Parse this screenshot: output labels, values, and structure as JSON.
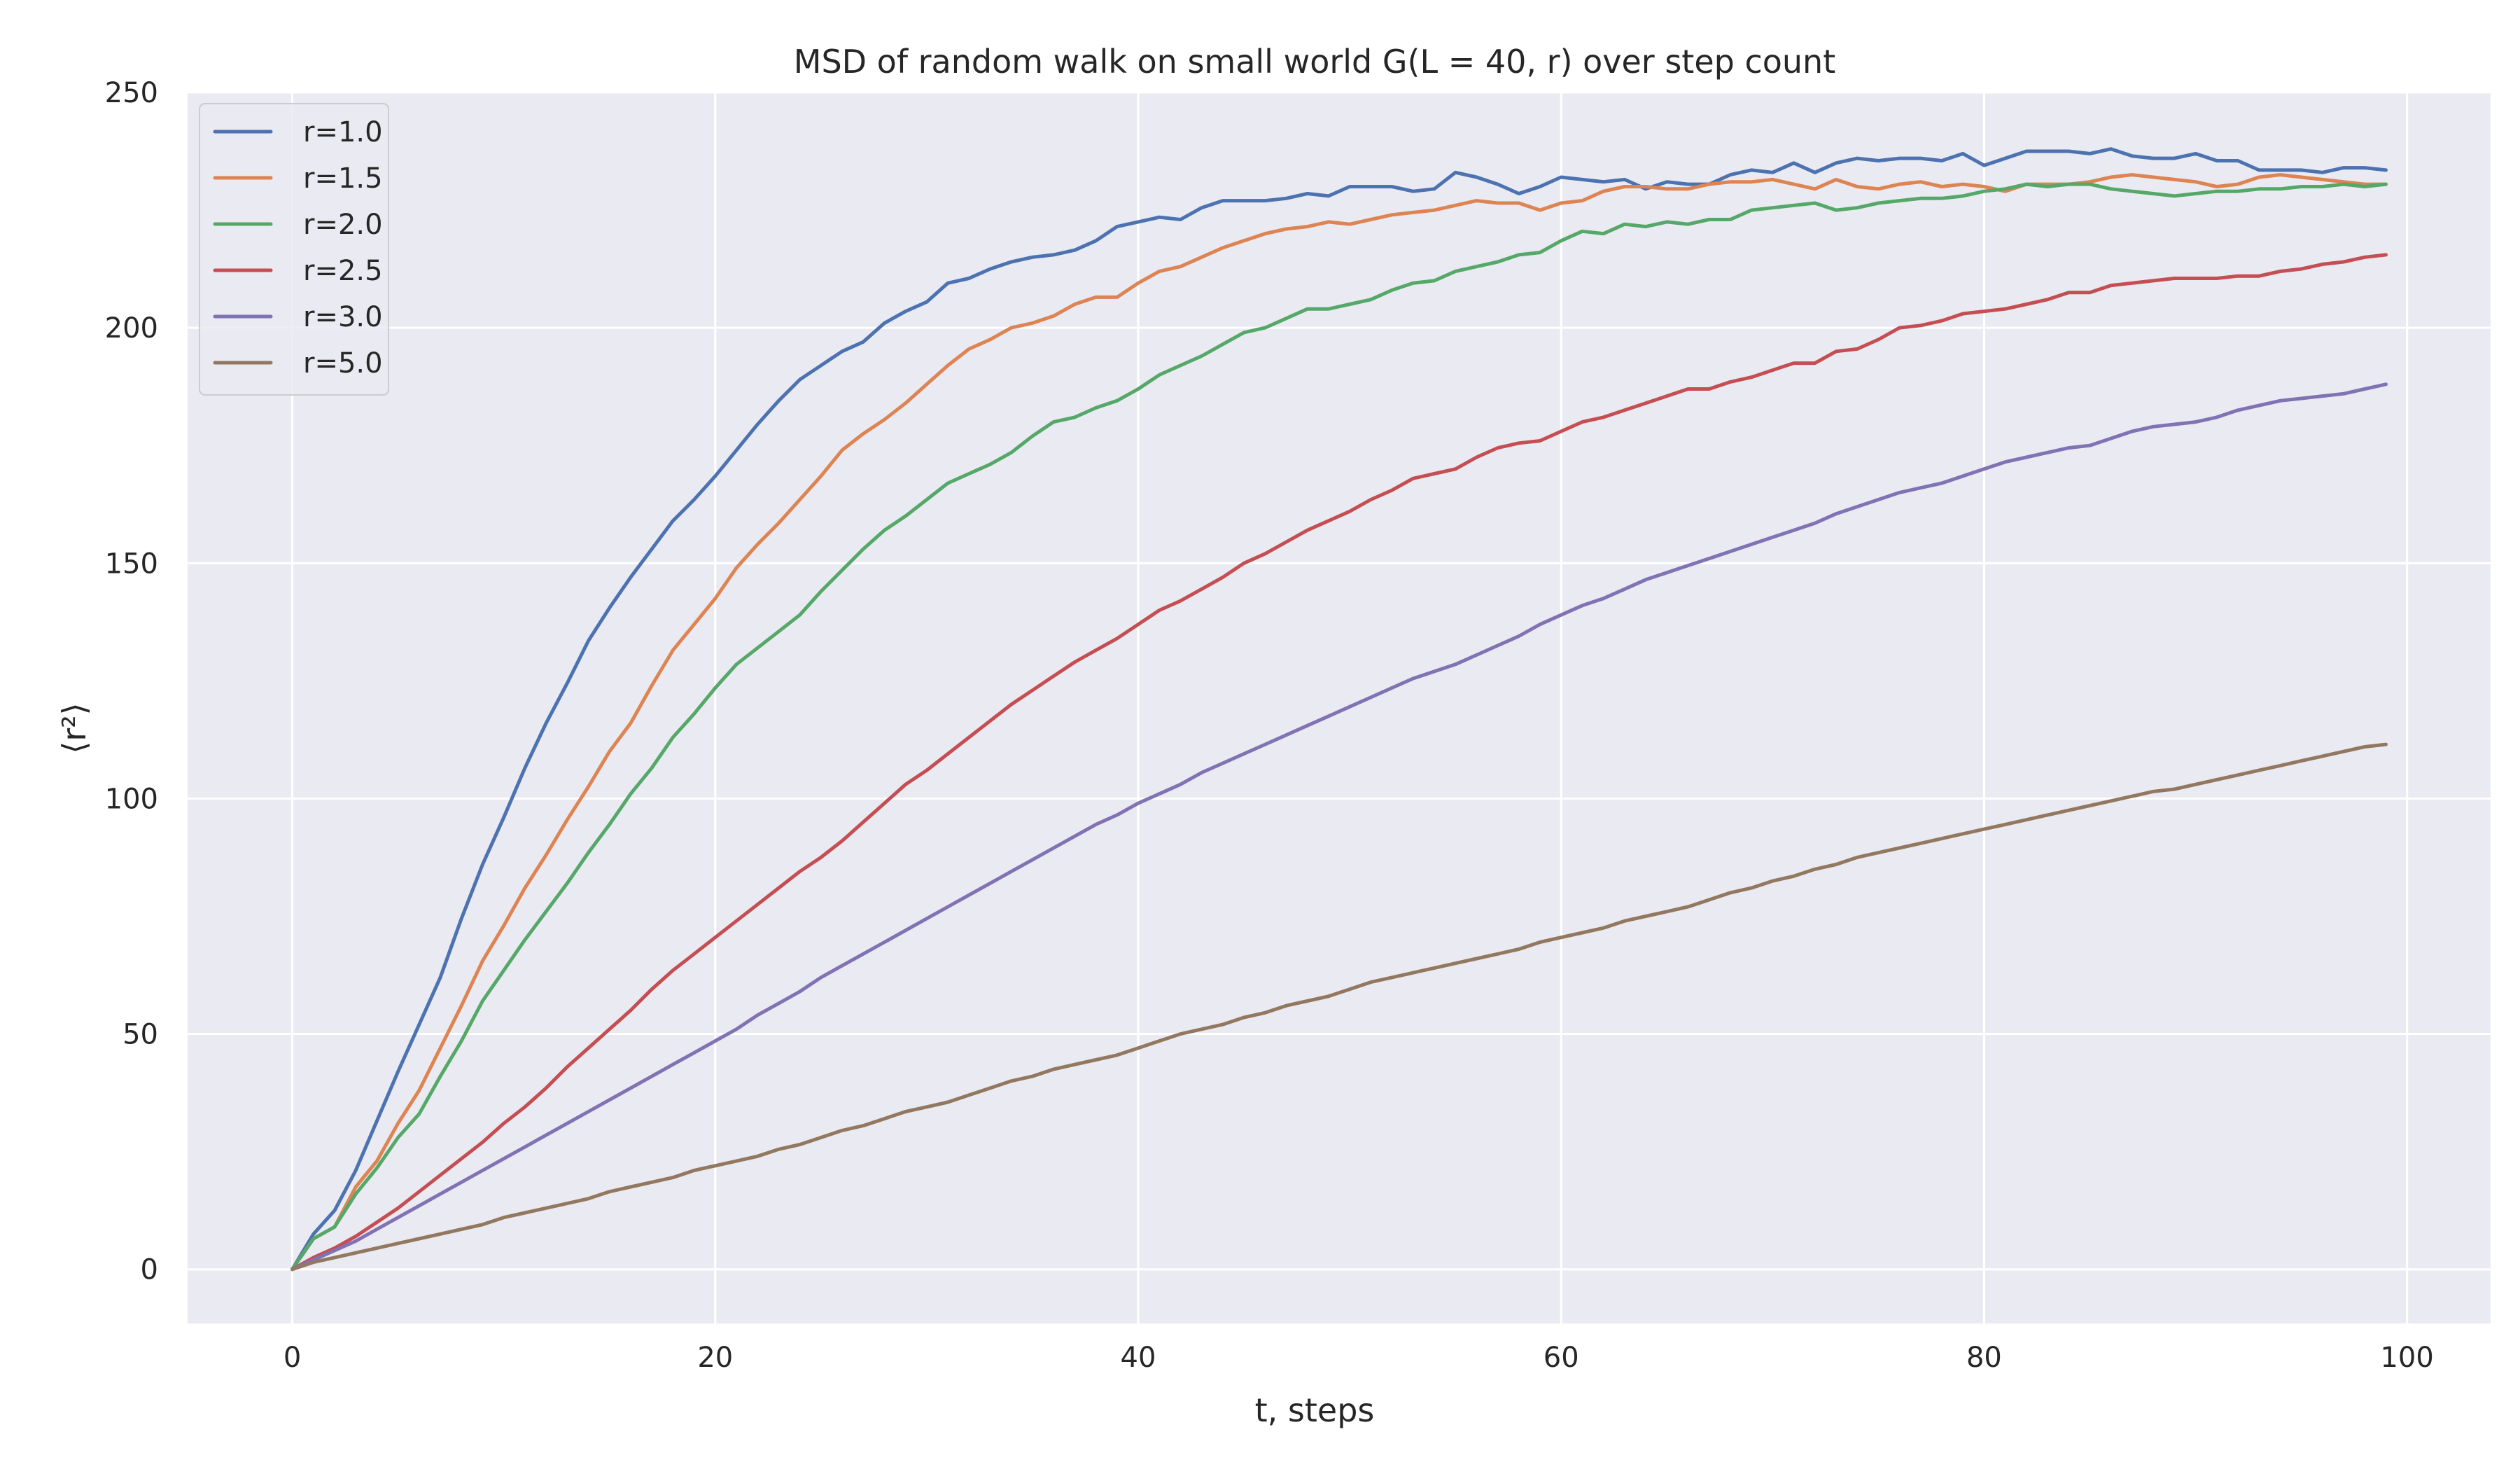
{
  "chart_data": {
    "type": "line",
    "title": "MSD of random walk on small world G(L = 40, r) over step count",
    "xlabel": "t, steps",
    "ylabel": "⟨r²⟩",
    "xlim": [
      -4.95,
      103.95
    ],
    "ylim": [
      -11.5,
      250
    ],
    "xticks": [
      0,
      20,
      40,
      60,
      80,
      100
    ],
    "yticks": [
      0,
      50,
      100,
      150,
      200,
      250
    ],
    "grid": true,
    "legend_position": "top-left",
    "background_color": "#eaeaf2",
    "grid_color": "#ffffff",
    "x": [
      0,
      1,
      2,
      3,
      4,
      5,
      6,
      7,
      8,
      9,
      10,
      11,
      12,
      13,
      14,
      15,
      16,
      17,
      18,
      19,
      20,
      21,
      22,
      23,
      24,
      25,
      26,
      27,
      28,
      29,
      30,
      31,
      32,
      33,
      34,
      35,
      36,
      37,
      38,
      39,
      40,
      41,
      42,
      43,
      44,
      45,
      46,
      47,
      48,
      49,
      50,
      51,
      52,
      53,
      54,
      55,
      56,
      57,
      58,
      59,
      60,
      61,
      62,
      63,
      64,
      65,
      66,
      67,
      68,
      69,
      70,
      71,
      72,
      73,
      74,
      75,
      76,
      77,
      78,
      79,
      80,
      81,
      82,
      83,
      84,
      85,
      86,
      87,
      88,
      89,
      90,
      91,
      92,
      93,
      94,
      95,
      96,
      97,
      98,
      99
    ],
    "series": [
      {
        "name": "r=1.0",
        "color": "#4c72b0",
        "values": [
          0,
          7.5,
          12.5,
          21,
          31.5,
          42,
          52,
          62,
          74.5,
          86,
          96,
          106.5,
          116,
          124.5,
          133.5,
          140.5,
          147,
          153,
          159,
          163.5,
          168.5,
          174,
          179.5,
          184.5,
          189,
          192,
          195,
          197,
          201,
          203.5,
          205.5,
          209.5,
          210.5,
          212.5,
          214,
          215,
          215.5,
          216.5,
          218.5,
          221.5,
          222.5,
          223.5,
          223,
          225.5,
          227,
          227,
          227,
          227.5,
          228.5,
          228,
          230,
          230,
          230,
          229,
          229.5,
          233,
          232,
          230.5,
          228.5,
          230,
          232,
          231.5,
          231,
          231.5,
          229.5,
          231,
          230.5,
          230.5,
          232.5,
          233.5,
          233,
          235,
          233,
          235,
          236,
          235.5,
          236,
          236,
          235.5,
          237,
          234.5,
          236,
          237.5,
          237.5,
          237.5,
          237,
          238,
          236.5,
          236,
          236,
          237,
          235.5,
          235.5,
          233.5,
          233.5,
          233.5,
          233,
          234,
          234,
          233.5
        ]
      },
      {
        "name": "r=1.5",
        "color": "#dd8452",
        "values": [
          0,
          6.5,
          9,
          17.5,
          23,
          31,
          38,
          47,
          56,
          65.5,
          73,
          81,
          88,
          95.5,
          102.5,
          110,
          116,
          124,
          131.5,
          137,
          142.5,
          149,
          154,
          158.5,
          163.5,
          168.5,
          174,
          177.5,
          180.5,
          184,
          188,
          192,
          195.5,
          197.5,
          200,
          201,
          202.5,
          205,
          206.5,
          206.5,
          209.5,
          212,
          213,
          215,
          217,
          218.5,
          220,
          221,
          221.5,
          222.5,
          222,
          223,
          224,
          224.5,
          225,
          226,
          227,
          226.5,
          226.5,
          225,
          226.5,
          227,
          229,
          230,
          230,
          229.5,
          229.5,
          230.5,
          231,
          231,
          231.5,
          230.5,
          229.5,
          231.5,
          230,
          229.5,
          230.5,
          231,
          230,
          230.5,
          230,
          229,
          230.5,
          230.5,
          230.5,
          231,
          232,
          232.5,
          232,
          231.5,
          231,
          230,
          230.5,
          232,
          232.5,
          232,
          231.5,
          231,
          230.5,
          230.5
        ]
      },
      {
        "name": "r=2.0",
        "color": "#55a868",
        "values": [
          0,
          6.5,
          9,
          16,
          21.5,
          28,
          33,
          41,
          48.5,
          57,
          63.5,
          70,
          76,
          82,
          88.5,
          94.5,
          101,
          106.5,
          113,
          118,
          123.5,
          128.5,
          132,
          135.5,
          139,
          144,
          148.5,
          153,
          157,
          160,
          163.5,
          167,
          169,
          171,
          173.5,
          177,
          180,
          181,
          183,
          184.5,
          187,
          190,
          192,
          194,
          196.5,
          199,
          200,
          202,
          204,
          204,
          205,
          206,
          208,
          209.5,
          210,
          212,
          213,
          214,
          215.5,
          216,
          218.5,
          220.5,
          220,
          222,
          221.5,
          222.5,
          222,
          223,
          223,
          225,
          225.5,
          226,
          226.5,
          225,
          225.5,
          226.5,
          227,
          227.5,
          227.5,
          228,
          229,
          229.5,
          230.5,
          230,
          230.5,
          230.5,
          229.5,
          229,
          228.5,
          228,
          228.5,
          229,
          229,
          229.5,
          229.5,
          230,
          230,
          230.5,
          230,
          230.5
        ]
      },
      {
        "name": "r=2.5",
        "color": "#c44e52",
        "values": [
          0,
          2.5,
          4.5,
          7,
          10,
          13,
          16.5,
          20,
          23.5,
          27,
          31,
          34.5,
          38.5,
          43,
          47,
          51,
          55,
          59.5,
          63.5,
          67,
          70.5,
          74,
          77.5,
          81,
          84.5,
          87.5,
          91,
          95,
          99,
          103,
          106,
          109.5,
          113,
          116.5,
          120,
          123,
          126,
          129,
          131.5,
          134,
          137,
          140,
          142,
          144.5,
          147,
          150,
          152,
          154.5,
          157,
          159,
          161,
          163.5,
          165.5,
          168,
          169,
          170,
          172.5,
          174.5,
          175.5,
          176,
          178,
          180,
          181,
          182.5,
          184,
          185.5,
          187,
          187,
          188.5,
          189.5,
          191,
          192.5,
          192.5,
          195,
          195.5,
          197.5,
          200,
          200.5,
          201.5,
          203,
          203.5,
          204,
          205,
          206,
          207.5,
          207.5,
          209,
          209.5,
          210,
          210.5,
          210.5,
          210.5,
          211,
          211,
          212,
          212.5,
          213.5,
          214,
          215,
          215.5
        ]
      },
      {
        "name": "r=3.0",
        "color": "#8172b3",
        "values": [
          0,
          2,
          4,
          6,
          8.5,
          11,
          13.5,
          16,
          18.5,
          21,
          23.5,
          26,
          28.5,
          31,
          33.5,
          36,
          38.5,
          41,
          43.5,
          46,
          48.5,
          51,
          54,
          56.5,
          59,
          62,
          64.5,
          67,
          69.5,
          72,
          74.5,
          77,
          79.5,
          82,
          84.5,
          87,
          89.5,
          92,
          94.5,
          96.5,
          99,
          101,
          103,
          105.5,
          107.5,
          109.5,
          111.5,
          113.5,
          115.5,
          117.5,
          119.5,
          121.5,
          123.5,
          125.5,
          127,
          128.5,
          130.5,
          132.5,
          134.5,
          137,
          139,
          141,
          142.5,
          144.5,
          146.5,
          148,
          149.5,
          151,
          152.5,
          154,
          155.5,
          157,
          158.5,
          160.5,
          162,
          163.5,
          165,
          166,
          167,
          168.5,
          170,
          171.5,
          172.5,
          173.5,
          174.5,
          175,
          176.5,
          178,
          179,
          179.5,
          180,
          181,
          182.5,
          183.5,
          184.5,
          185,
          185.5,
          186,
          187,
          188
        ]
      },
      {
        "name": "r=5.0",
        "color": "#937860",
        "values": [
          0,
          1.5,
          2.5,
          3.5,
          4.5,
          5.5,
          6.5,
          7.5,
          8.5,
          9.5,
          11,
          12,
          13,
          14,
          15,
          16.5,
          17.5,
          18.5,
          19.5,
          21,
          22,
          23,
          24,
          25.5,
          26.5,
          28,
          29.5,
          30.5,
          32,
          33.5,
          34.5,
          35.5,
          37,
          38.5,
          40,
          41,
          42.5,
          43.5,
          44.5,
          45.5,
          47,
          48.5,
          50,
          51,
          52,
          53.5,
          54.5,
          56,
          57,
          58,
          59.5,
          61,
          62,
          63,
          64,
          65,
          66,
          67,
          68,
          69.5,
          70.5,
          71.5,
          72.5,
          74,
          75,
          76,
          77,
          78.5,
          80,
          81,
          82.5,
          83.5,
          85,
          86,
          87.5,
          88.5,
          89.5,
          90.5,
          91.5,
          92.5,
          93.5,
          94.5,
          95.5,
          96.5,
          97.5,
          98.5,
          99.5,
          100.5,
          101.5,
          102,
          103,
          104,
          105,
          106,
          107,
          108,
          109,
          110,
          111,
          111.5
        ]
      }
    ]
  }
}
